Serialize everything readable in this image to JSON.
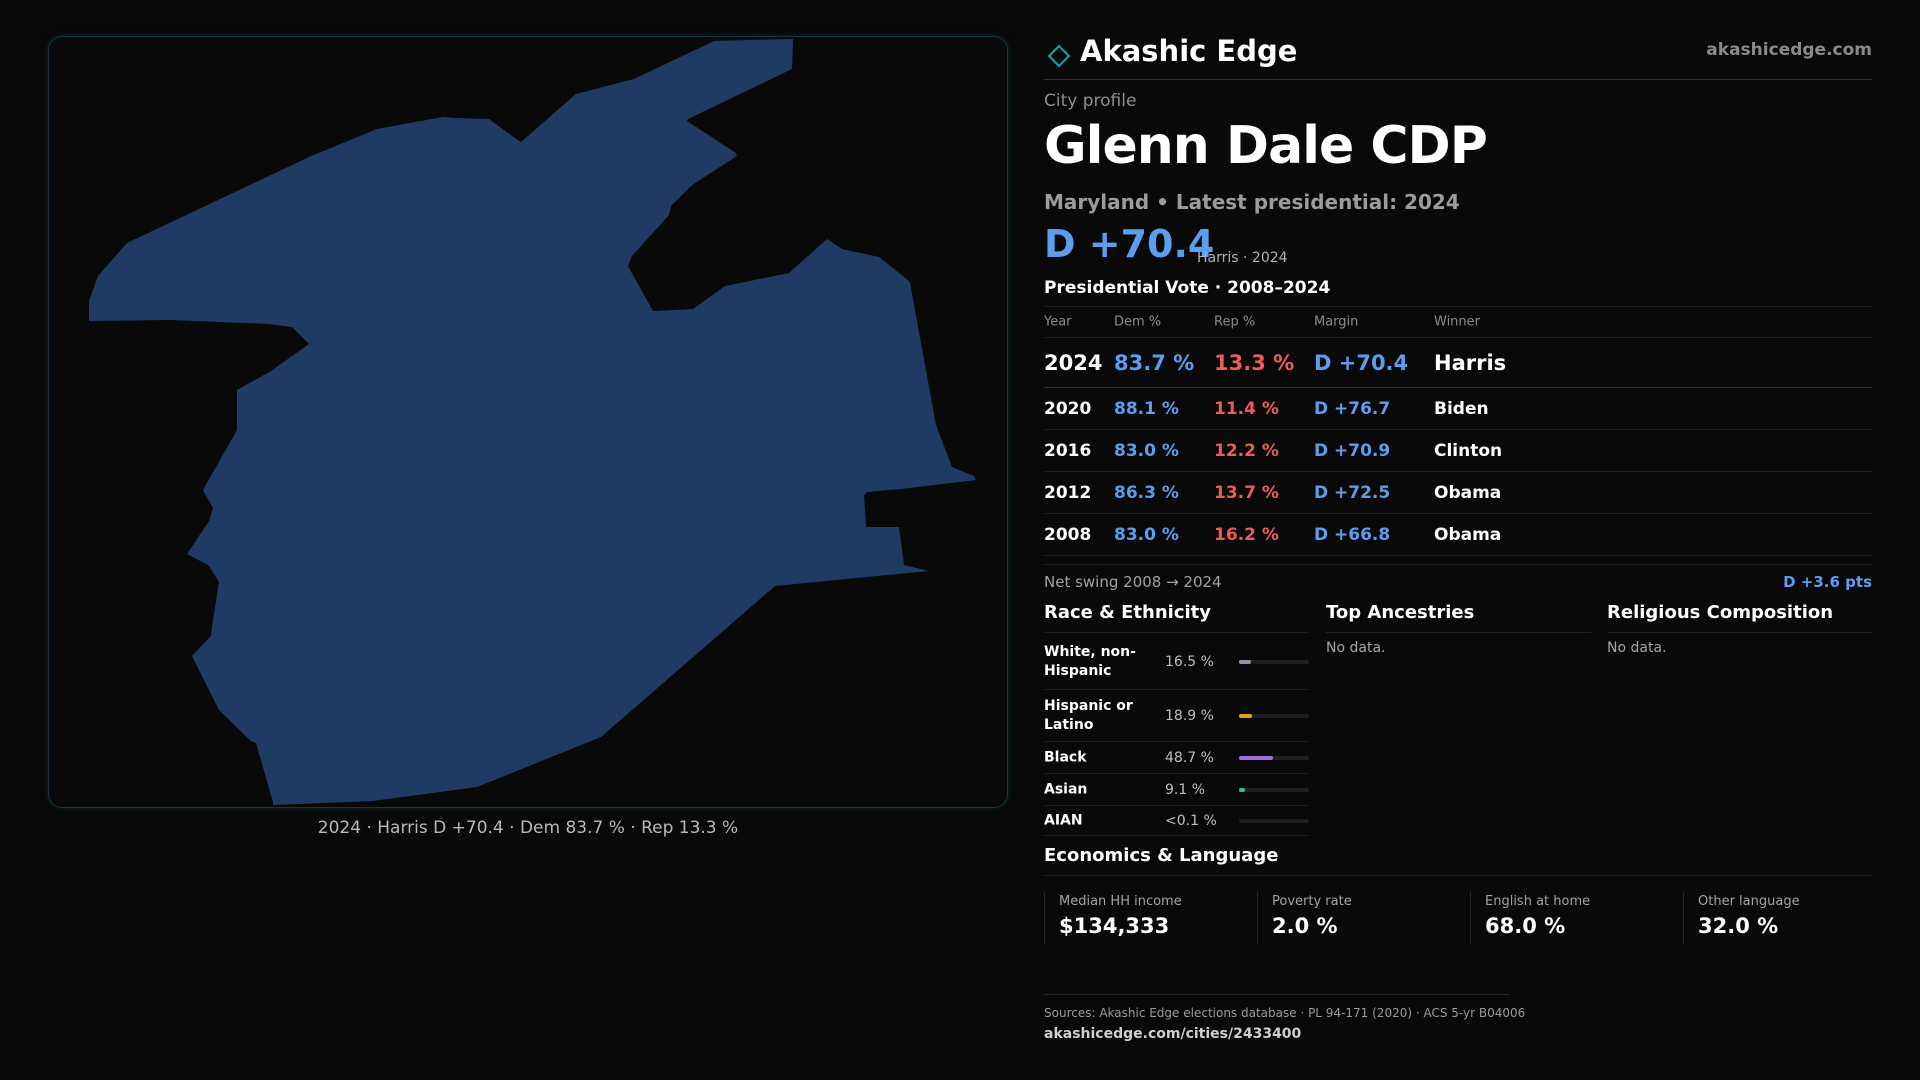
{
  "brand": {
    "name": "Akashic Edge",
    "url": "akashicedge.com",
    "accent": "#0fa3b1"
  },
  "map": {
    "fill_color": "#1f3b63",
    "caption": "2024 · Harris D +70.4 · Dem 83.7 % · Rep 13.3 %"
  },
  "profile": {
    "label": "City profile",
    "name": "Glenn Dale CDP",
    "subtitle": "Maryland • Latest presidential: 2024",
    "headline_margin": "D +70.4",
    "headline_note": "Harris · 2024"
  },
  "presidential": {
    "title": "Presidential Vote · 2008–2024",
    "headers": {
      "year": "Year",
      "dem": "Dem %",
      "rep": "Rep %",
      "margin": "Margin",
      "winner": "Winner"
    },
    "rows": [
      {
        "year": "2024",
        "dem": "83.7 %",
        "rep": "13.3 %",
        "margin": "D +70.4",
        "winner": "Harris"
      },
      {
        "year": "2020",
        "dem": "88.1 %",
        "rep": "11.4 %",
        "margin": "D +76.7",
        "winner": "Biden"
      },
      {
        "year": "2016",
        "dem": "83.0 %",
        "rep": "12.2 %",
        "margin": "D +70.9",
        "winner": "Clinton"
      },
      {
        "year": "2012",
        "dem": "86.3 %",
        "rep": "13.7 %",
        "margin": "D +72.5",
        "winner": "Obama"
      },
      {
        "year": "2008",
        "dem": "83.0 %",
        "rep": "16.2 %",
        "margin": "D +66.8",
        "winner": "Obama"
      }
    ],
    "swing_label": "Net swing 2008 → 2024",
    "swing_value": "D +3.6 pts",
    "colors": {
      "dem": "#5b9ef0",
      "rep": "#ef5b5b"
    }
  },
  "race": {
    "title": "Race & Ethnicity",
    "rows": [
      {
        "label": "White, non-Hispanic",
        "pct": "16.5 %",
        "share": 0.165,
        "color": "#8b95a5"
      },
      {
        "label": "Hispanic or Latino",
        "pct": "18.9 %",
        "share": 0.189,
        "color": "#e0a020"
      },
      {
        "label": "Black",
        "pct": "48.7 %",
        "share": 0.487,
        "color": "#9b6fe0"
      },
      {
        "label": "Asian",
        "pct": "9.1 %",
        "share": 0.091,
        "color": "#2ec48a"
      },
      {
        "label": "AIAN",
        "pct": "<0.1 %",
        "share": 0.0,
        "color": "#888888"
      }
    ]
  },
  "ancestries": {
    "title": "Top Ancestries",
    "empty": "No data."
  },
  "religion": {
    "title": "Religious Composition",
    "empty": "No data."
  },
  "economics": {
    "title": "Economics & Language",
    "items": [
      {
        "label": "Median HH income",
        "value": "$134,333"
      },
      {
        "label": "Poverty rate",
        "value": "2.0 %"
      },
      {
        "label": "English at home",
        "value": "68.0 %"
      },
      {
        "label": "Other language",
        "value": "32.0 %"
      }
    ]
  },
  "footer": {
    "sources": "Sources: Akashic Edge elections database · PL 94-171 (2020) · ACS 5-yr B04006",
    "url": "akashicedge.com/cities/2433400"
  }
}
